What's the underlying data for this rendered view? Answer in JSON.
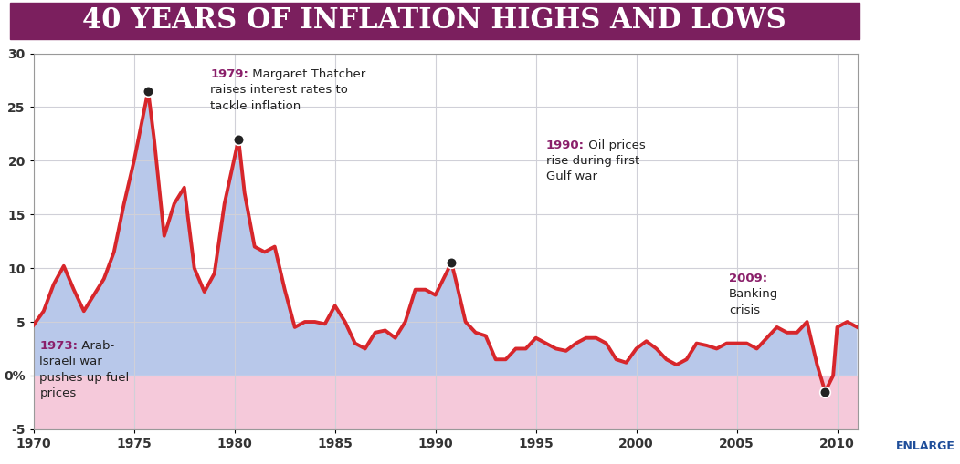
{
  "chart_data": {
    "type": "line",
    "title": "40 YEARS OF INFLATION HIGHS AND LOWS",
    "button": "ENLARGE",
    "x": [
      1970,
      1970.5,
      1971,
      1971.5,
      1972,
      1972.5,
      1973,
      1973.5,
      1974,
      1974.5,
      1975,
      1975.7,
      1976,
      1976.5,
      1977,
      1977.5,
      1978,
      1978.5,
      1979,
      1979.5,
      1980.2,
      1980.5,
      1981,
      1981.5,
      1982,
      1982.5,
      1983,
      1983.5,
      1984,
      1984.5,
      1985,
      1985.5,
      1986,
      1986.5,
      1987,
      1987.5,
      1988,
      1988.5,
      1989,
      1989.5,
      1990,
      1990.8,
      1991,
      1991.5,
      1992,
      1992.5,
      1993,
      1993.5,
      1994,
      1994.5,
      1995,
      1995.5,
      1996,
      1996.5,
      1997,
      1997.5,
      1998,
      1998.5,
      1999,
      1999.5,
      2000,
      2000.5,
      2001,
      2001.5,
      2002,
      2002.5,
      2003,
      2003.5,
      2004,
      2004.5,
      2005,
      2005.5,
      2006,
      2006.5,
      2007,
      2007.5,
      2008,
      2008.5,
      2009,
      2009.4,
      2009.8,
      2010,
      2010.5,
      2011
    ],
    "series": [
      {
        "name": "Inflation",
        "color": "#d7262b",
        "values": [
          4.7,
          6,
          8.5,
          10.2,
          8,
          6,
          7.5,
          9,
          11.5,
          16,
          20,
          26.5,
          22,
          13,
          16,
          17.5,
          10,
          7.8,
          9.5,
          16,
          22,
          17,
          12,
          11.5,
          12,
          8,
          4.5,
          5,
          5,
          4.8,
          6.5,
          5,
          3,
          2.5,
          4,
          4.2,
          3.5,
          5,
          8,
          8,
          7.5,
          10.5,
          9,
          5,
          4,
          3.7,
          1.5,
          1.5,
          2.5,
          2.5,
          3.5,
          3,
          2.5,
          2.3,
          3,
          3.5,
          3.5,
          3,
          1.5,
          1.2,
          2.5,
          3.2,
          2.5,
          1.5,
          1,
          1.5,
          3,
          2.8,
          2.5,
          3,
          3,
          3,
          2.5,
          3.5,
          4.5,
          4,
          4,
          5,
          1,
          -1.5,
          0,
          4.5,
          5,
          4.5
        ]
      }
    ],
    "xlim": [
      1970,
      2011
    ],
    "xticks": [
      1970,
      1975,
      1980,
      1985,
      1990,
      1995,
      2000,
      2005,
      2010
    ],
    "ylim": [
      -5,
      30
    ],
    "yticks": [
      -5,
      {
        "value": 0,
        "label": "0%"
      },
      5,
      10,
      15,
      20,
      25,
      30
    ],
    "grid": true,
    "annotations": [
      {
        "year": "1973:",
        "text": "Arab-Israeli war pushes up fuel prices",
        "x": 1975.7,
        "y": 26.5
      },
      {
        "year": "1979:",
        "text": "Margaret Thatcher raises interest rates to tackle inflation",
        "x": 1980.2,
        "y": 22
      },
      {
        "year": "1990:",
        "text": "Oil prices rise during first Gulf war",
        "x": 1990.8,
        "y": 10.5
      },
      {
        "year": "2009:",
        "text": "Banking crisis",
        "x": 2009.4,
        "y": -1.5
      }
    ]
  }
}
